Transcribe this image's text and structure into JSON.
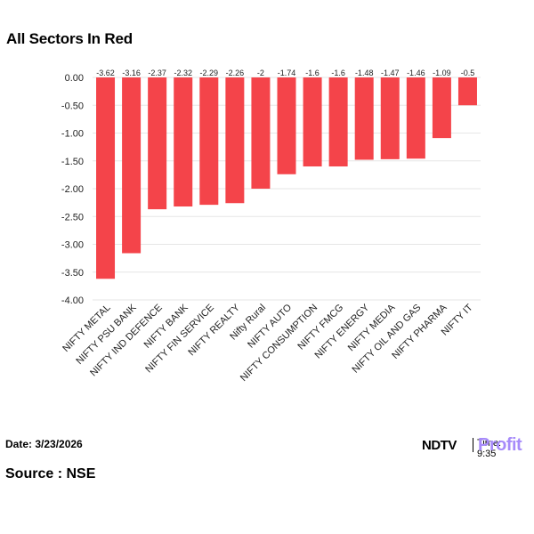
{
  "title": "All Sectors In Red",
  "footer": {
    "date": "Date: 3/23/2026",
    "source": "Source : NSE"
  },
  "logo": {
    "brand": "NDTV",
    "sub": "Profit",
    "time": "Time: 9:35"
  },
  "colors": {
    "bar": "#f4444a",
    "grid": "#e6e6e6",
    "axis": "#cccccc",
    "label": "#222222",
    "profit": "#a78bfa"
  },
  "chart_data": {
    "type": "bar",
    "categories": [
      "NIFTY METAL",
      "NIFTY PSU BANK",
      "NIFTY IND DEFENCE",
      "NIFTY BANK",
      "NIFTY FIN SERVICE",
      "NIFTY REALTY",
      "Nifty Rural",
      "NIFTY AUTO",
      "NIFTY CONSUMPTION",
      "NIFTY FMCG",
      "NIFTY ENERGY",
      "NIFTY MEDIA",
      "NIFTY OIL AND GAS",
      "NIFTY PHARMA",
      "NIFTY IT"
    ],
    "values": [
      -3.62,
      -3.16,
      -2.37,
      -2.32,
      -2.29,
      -2.26,
      -2,
      -1.74,
      -1.6,
      -1.6,
      -1.48,
      -1.47,
      -1.46,
      -1.09,
      -0.5
    ],
    "value_labels": [
      "-3.62",
      "-3.16",
      "-2.37",
      "-2.32",
      "-2.29",
      "-2.26",
      "-2",
      "-1.74",
      "-1.6",
      "-1.6",
      "-1.48",
      "-1.47",
      "-1.46",
      "-1.09",
      "-0.5"
    ],
    "yticks": [
      "0.00",
      "-0.50",
      "-1.00",
      "-1.50",
      "-2.00",
      "-2.50",
      "-3.00",
      "-3.50",
      "-4.00"
    ],
    "ylim": [
      -4,
      0
    ],
    "grid": true,
    "legend": "none"
  }
}
